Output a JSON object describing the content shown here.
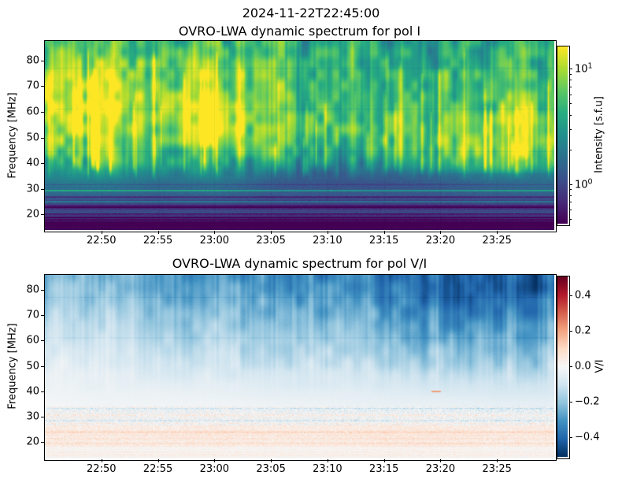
{
  "figure": {
    "suptitle": "2024-11-22T22:45:00",
    "background_color": "#ffffff",
    "text_color": "#000000"
  },
  "chart_data": [
    {
      "type": "heatmap",
      "title": "OVRO-LWA dynamic spectrum for pol I",
      "ylabel": "Frequency [MHz]",
      "x_time_start": "22:45:00",
      "x_time_end": "23:30:00",
      "x_minutes_range": [
        0,
        45
      ],
      "x_ticks": [
        {
          "minute": 5,
          "label": "22:50"
        },
        {
          "minute": 10,
          "label": "22:55"
        },
        {
          "minute": 15,
          "label": "23:00"
        },
        {
          "minute": 20,
          "label": "23:05"
        },
        {
          "minute": 25,
          "label": "23:10"
        },
        {
          "minute": 30,
          "label": "23:15"
        },
        {
          "minute": 35,
          "label": "23:20"
        },
        {
          "minute": 40,
          "label": "23:25"
        }
      ],
      "y_ticks_mhz": [
        20,
        30,
        40,
        50,
        60,
        70,
        80
      ],
      "y_range_mhz": [
        14.2,
        87.65
      ],
      "colormap": "viridis",
      "color_scale": "log",
      "colorbar_label": "Intensity [s.f.u]",
      "colorbar_range_sfu": [
        0.46,
        15.6
      ],
      "colorbar_major_ticks": [
        {
          "value": 10,
          "label": "10^1"
        },
        {
          "value": 1,
          "label": "10^0"
        }
      ],
      "colorbar_minor_tick_values": [
        0.5,
        0.6,
        0.7,
        0.8,
        0.9,
        2,
        3,
        4,
        5,
        6,
        7,
        8,
        9
      ],
      "grid": {
        "units": "s.f.u",
        "times_min": [
          0,
          5,
          10,
          15,
          20,
          25,
          30,
          35,
          40,
          45
        ],
        "freqs_mhz": [
          14,
          16,
          18,
          20,
          24,
          28,
          32,
          36,
          40,
          46,
          54,
          62,
          70,
          78,
          88
        ],
        "values": [
          [
            0.42,
            0.42,
            0.42,
            0.42,
            0.42,
            0.42,
            0.42,
            0.42,
            0.42,
            0.42
          ],
          [
            0.5,
            0.5,
            0.5,
            0.5,
            0.48,
            0.48,
            0.48,
            0.48,
            0.5,
            0.5
          ],
          [
            0.58,
            0.58,
            0.58,
            0.58,
            0.55,
            0.55,
            0.55,
            0.55,
            0.58,
            0.58
          ],
          [
            0.7,
            0.7,
            0.7,
            0.7,
            0.65,
            0.65,
            0.65,
            0.65,
            0.7,
            0.7
          ],
          [
            0.9,
            0.9,
            0.9,
            0.9,
            0.85,
            0.85,
            0.85,
            0.85,
            0.9,
            0.9
          ],
          [
            1.2,
            1.2,
            1.1,
            1.2,
            1.0,
            1.0,
            1.0,
            1.0,
            1.1,
            1.1
          ],
          [
            1.7,
            1.8,
            1.5,
            1.6,
            1.2,
            1.1,
            1.1,
            1.2,
            1.4,
            1.5
          ],
          [
            2.6,
            2.9,
            2.2,
            2.6,
            1.6,
            1.4,
            1.5,
            1.7,
            2.2,
            2.0
          ],
          [
            4.0,
            4.5,
            3.5,
            4.0,
            2.5,
            2.0,
            2.2,
            3.5,
            7.0,
            5.0
          ],
          [
            6.0,
            7.0,
            5.0,
            7.0,
            4.0,
            3.5,
            4.0,
            6.0,
            11.0,
            9.0
          ],
          [
            9.0,
            11.0,
            7.0,
            13.0,
            6.0,
            5.0,
            5.0,
            7.0,
            9.5,
            10.0
          ],
          [
            13.0,
            14.0,
            9.0,
            14.0,
            7.0,
            5.5,
            5.0,
            6.0,
            7.0,
            7.5
          ],
          [
            12.0,
            13.0,
            8.0,
            11.0,
            6.5,
            5.0,
            4.5,
            5.0,
            5.5,
            6.0
          ],
          [
            8.0,
            9.0,
            6.5,
            8.0,
            5.0,
            4.5,
            4.0,
            4.5,
            5.0,
            5.0
          ],
          [
            5.0,
            5.5,
            4.5,
            5.0,
            4.0,
            3.8,
            3.5,
            3.5,
            4.0,
            4.0
          ]
        ]
      }
    },
    {
      "type": "heatmap",
      "title": "OVRO-LWA dynamic spectrum for pol V/I",
      "ylabel": "Frequency [MHz]",
      "x_time_start": "22:45:00",
      "x_time_end": "23:30:00",
      "x_minutes_range": [
        0,
        45
      ],
      "x_ticks": [
        {
          "minute": 5,
          "label": "22:50"
        },
        {
          "minute": 10,
          "label": "22:55"
        },
        {
          "minute": 15,
          "label": "23:00"
        },
        {
          "minute": 20,
          "label": "23:05"
        },
        {
          "minute": 25,
          "label": "23:10"
        },
        {
          "minute": 30,
          "label": "23:15"
        },
        {
          "minute": 35,
          "label": "23:20"
        },
        {
          "minute": 40,
          "label": "23:25"
        }
      ],
      "y_ticks_mhz": [
        20,
        30,
        40,
        50,
        60,
        70,
        80
      ],
      "y_range_mhz": [
        13.8,
        85.9
      ],
      "colormap": "RdBu",
      "color_scale": "linear",
      "colorbar_label": "V/I",
      "colorbar_range": [
        -0.505,
        0.505
      ],
      "colorbar_major_ticks": [
        {
          "value": 0.4,
          "label": "0.4"
        },
        {
          "value": 0.2,
          "label": "0.2"
        },
        {
          "value": 0.0,
          "label": "0.0"
        },
        {
          "value": -0.2,
          "label": "−0.2"
        },
        {
          "value": -0.4,
          "label": "−0.4"
        }
      ],
      "colorbar_minor_tick_values": [],
      "grid": {
        "units": "V/I",
        "times_min": [
          0,
          5,
          10,
          15,
          20,
          25,
          30,
          35,
          40,
          45
        ],
        "freqs_mhz": [
          14,
          16,
          18,
          20,
          24,
          28,
          32,
          36,
          40,
          46,
          54,
          62,
          70,
          78,
          88
        ],
        "values": [
          [
            0.0,
            0.0,
            0.0,
            0.01,
            0.0,
            0.0,
            0.01,
            0.0,
            0.0,
            0.0
          ],
          [
            0.01,
            0.01,
            0.01,
            0.01,
            0.01,
            0.01,
            0.01,
            0.01,
            0.01,
            0.01
          ],
          [
            0.01,
            0.01,
            0.01,
            0.01,
            0.01,
            0.01,
            0.02,
            0.02,
            0.01,
            0.01
          ],
          [
            0.02,
            0.02,
            0.02,
            0.02,
            0.02,
            0.02,
            0.03,
            0.03,
            0.02,
            0.02
          ],
          [
            0.03,
            0.03,
            0.03,
            0.04,
            0.03,
            0.03,
            0.04,
            0.04,
            0.03,
            0.03
          ],
          [
            0.02,
            0.02,
            0.01,
            0.02,
            0.01,
            0.01,
            0.02,
            0.02,
            0.01,
            0.02
          ],
          [
            0.0,
            -0.01,
            -0.01,
            -0.01,
            -0.01,
            -0.02,
            -0.02,
            -0.02,
            -0.03,
            -0.03
          ],
          [
            -0.01,
            -0.02,
            -0.02,
            -0.02,
            -0.03,
            -0.03,
            -0.04,
            -0.04,
            -0.05,
            -0.05
          ],
          [
            -0.02,
            -0.03,
            -0.03,
            -0.04,
            -0.05,
            -0.05,
            -0.06,
            -0.07,
            -0.08,
            -0.08
          ],
          [
            -0.04,
            -0.05,
            -0.06,
            -0.07,
            -0.08,
            -0.09,
            -0.1,
            -0.11,
            -0.12,
            -0.12
          ],
          [
            -0.07,
            -0.08,
            -0.1,
            -0.11,
            -0.13,
            -0.14,
            -0.16,
            -0.18,
            -0.19,
            -0.19
          ],
          [
            -0.1,
            -0.12,
            -0.14,
            -0.16,
            -0.18,
            -0.2,
            -0.22,
            -0.24,
            -0.26,
            -0.26
          ],
          [
            -0.14,
            -0.16,
            -0.19,
            -0.21,
            -0.23,
            -0.25,
            -0.28,
            -0.3,
            -0.32,
            -0.32
          ],
          [
            -0.18,
            -0.2,
            -0.24,
            -0.26,
            -0.28,
            -0.3,
            -0.33,
            -0.36,
            -0.38,
            -0.38
          ],
          [
            -0.22,
            -0.25,
            -0.28,
            -0.3,
            -0.32,
            -0.35,
            -0.38,
            -0.4,
            -0.42,
            -0.42
          ]
        ]
      }
    }
  ]
}
